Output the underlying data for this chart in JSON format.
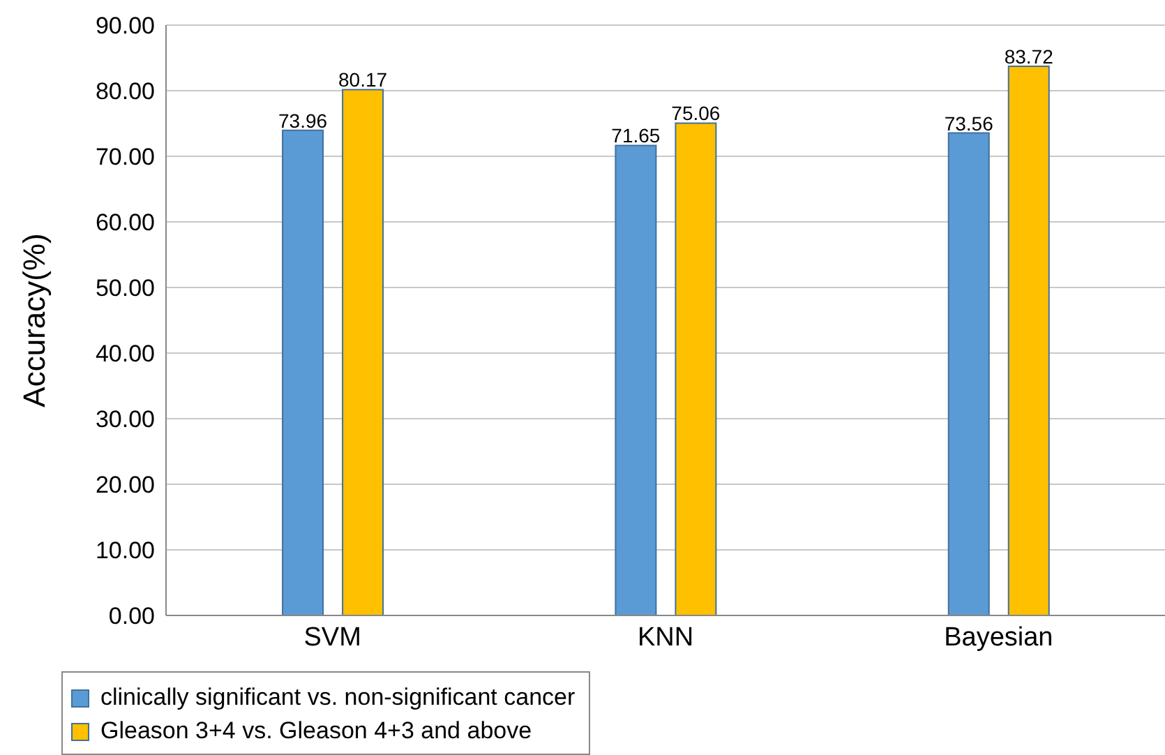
{
  "chart_data": {
    "type": "bar",
    "ylabel": "Accuracy(%)",
    "categories": [
      "SVM",
      "KNN",
      "Bayesian"
    ],
    "series": [
      {
        "name": "clinically significant vs. non-significant cancer",
        "color": "#5b9bd5",
        "values": [
          73.96,
          71.65,
          73.56
        ]
      },
      {
        "name": "Gleason 3+4 vs. Gleason 4+3 and above",
        "color": "#ffc000",
        "values": [
          80.17,
          75.06,
          83.72
        ]
      }
    ],
    "ylim": [
      0,
      90
    ],
    "yticks": [
      {
        "value": 0,
        "label": "0.00"
      },
      {
        "value": 10,
        "label": "10.00"
      },
      {
        "value": 20,
        "label": "20.00"
      },
      {
        "value": 30,
        "label": "30.00"
      },
      {
        "value": 40,
        "label": "40.00"
      },
      {
        "value": 50,
        "label": "50.00"
      },
      {
        "value": 60,
        "label": "60.00"
      },
      {
        "value": 70,
        "label": "70.00"
      },
      {
        "value": 80,
        "label": "80.00"
      },
      {
        "value": 90,
        "label": "90.00"
      }
    ],
    "grid": "y",
    "legend": "bottom left",
    "data_labels": true
  }
}
